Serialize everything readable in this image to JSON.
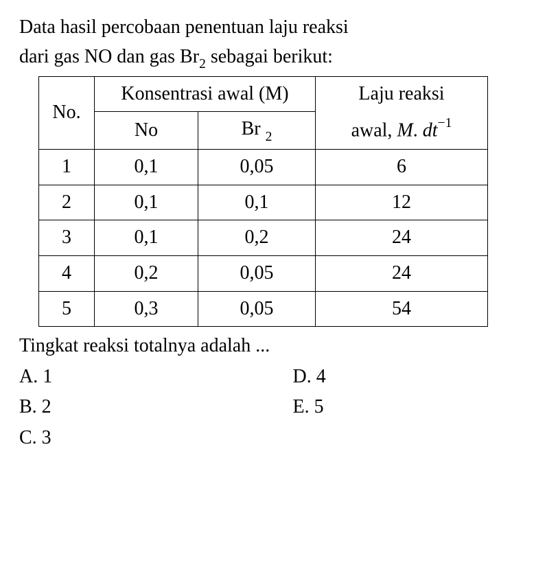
{
  "question": {
    "line1_pre": "Data hasil percobaan penentuan laju reaksi",
    "line2_pre": "dari gas NO dan gas Br",
    "line2_sub": "2",
    "line2_post": " sebagai berikut:"
  },
  "table": {
    "header": {
      "no": "No.",
      "konsentrasi": "Konsentrasi awal (M)",
      "laju_top": "Laju reaksi",
      "sub_no": "No",
      "sub_br_pre": "Br ",
      "sub_br_sub": "2",
      "laju_bottom_pre": "awal, ",
      "laju_bottom_M": "M",
      "laju_bottom_dot": ". ",
      "laju_bottom_dt": "dt",
      "laju_bottom_exp": "−1"
    },
    "rows": [
      {
        "n": "1",
        "no": "0,1",
        "br2": "0,05",
        "rate": "6"
      },
      {
        "n": "2",
        "no": "0,1",
        "br2": "0,1",
        "rate": "12"
      },
      {
        "n": "3",
        "no": "0,1",
        "br2": "0,2",
        "rate": "24"
      },
      {
        "n": "4",
        "no": "0,2",
        "br2": "0,05",
        "rate": "24"
      },
      {
        "n": "5",
        "no": "0,3",
        "br2": "0,05",
        "rate": "54"
      }
    ]
  },
  "post_question": "Tingkat reaksi totalnya adalah ...",
  "options": {
    "a": "A. 1",
    "b": "B. 2",
    "c": "C. 3",
    "d": "D. 4",
    "e": "E. 5"
  }
}
